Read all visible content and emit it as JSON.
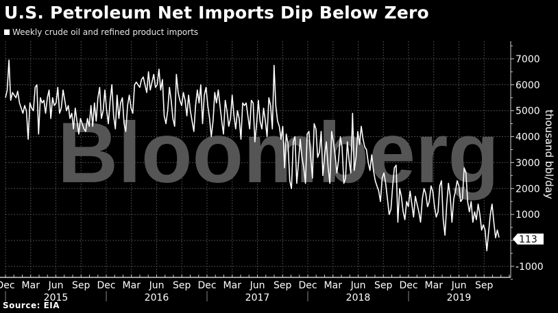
{
  "header": {
    "title": "U.S. Petroleum Net Imports Dip Below Zero",
    "legend_label": "Weekly crude oil and refined product imports"
  },
  "footer": {
    "source": "Source: EIA"
  },
  "watermark": "Bloomberg",
  "last_value_label": "113",
  "colors": {
    "background": "#000000",
    "line": "#ffffff",
    "grid": "#3a3a3a",
    "watermark": "#555555"
  },
  "chart_data": {
    "type": "line",
    "title": "U.S. Petroleum Net Imports Dip Below Zero",
    "legend": [
      "Weekly crude oil and refined product imports"
    ],
    "xlabel": "",
    "ylabel": "thousand bbl/day",
    "ylim": [
      -1500,
      7500
    ],
    "yticks": [
      7000,
      6000,
      5000,
      4000,
      3000,
      2000,
      1000,
      -1000
    ],
    "ytick_labels": [
      "7000",
      "6000",
      "5000",
      "4000",
      "3000",
      "2000",
      "1000",
      "-1000"
    ],
    "x_month_ticks": [
      "Dec",
      "Mar",
      "Jun",
      "Sep",
      "Dec",
      "Mar",
      "Jun",
      "Sep",
      "Dec",
      "Mar",
      "Jun",
      "Sep",
      "Dec",
      "Mar",
      "Jun",
      "Sep",
      "Dec",
      "Mar",
      "Jun",
      "Sep"
    ],
    "x_year_labels": [
      "2015",
      "2016",
      "2017",
      "2018",
      "2019"
    ],
    "grid": true,
    "legend_position": "top-left",
    "last_value": 113,
    "x_start": "2014-12",
    "x_end": "2019-11",
    "frequency": "weekly",
    "series": [
      {
        "name": "Weekly crude oil and refined product imports",
        "values": [
          5500,
          5800,
          6950,
          5400,
          5700,
          5600,
          5500,
          5750,
          5300,
          5100,
          4900,
          5200,
          5000,
          3900,
          5300,
          5100,
          5000,
          5900,
          6000,
          4100,
          5500,
          5300,
          5400,
          4900,
          5500,
          5800,
          4700,
          5500,
          5200,
          5300,
          5900,
          4900,
          5100,
          5800,
          5400,
          5000,
          5200,
          4700,
          4900,
          4300,
          5100,
          4600,
          4100,
          4700,
          4500,
          4300,
          4200,
          4700,
          4400,
          5200,
          4400,
          5300,
          4600,
          5500,
          5900,
          4700,
          5000,
          5800,
          5000,
          4500,
          5400,
          6000,
          4800,
          4300,
          5600,
          4700,
          5300,
          5500,
          4500,
          4200,
          5200,
          5600,
          5100,
          4900,
          6000,
          6100,
          6000,
          5900,
          6200,
          6300,
          6000,
          5700,
          6500,
          5800,
          6100,
          6400,
          5900,
          6000,
          6600,
          5800,
          6200,
          4800,
          4500,
          5000,
          5900,
          5400,
          4700,
          4400,
          6400,
          5700,
          5400,
          5200,
          5700,
          5400,
          4800,
          5600,
          5000,
          4600,
          4200,
          5200,
          5800,
          5300,
          6000,
          4500,
          5600,
          5900,
          5200,
          4700,
          4000,
          4600,
          5700,
          5300,
          5800,
          5200,
          4600,
          4100,
          5400,
          5000,
          4400,
          4700,
          5600,
          4800,
          4300,
          5000,
          4700,
          3900,
          5300,
          5200,
          5300,
          4800,
          4300,
          5400,
          5300,
          3800,
          4500,
          5400,
          4600,
          4300,
          5100,
          4600,
          4000,
          5500,
          5200,
          4300,
          6750,
          5200,
          4600,
          4400,
          3900,
          4400,
          2800,
          4100,
          3700,
          2300,
          2000,
          3800,
          4000,
          2200,
          3000,
          3900,
          3200,
          2800,
          2200,
          4100,
          4200,
          3200,
          2400,
          4500,
          4300,
          3200,
          3400,
          4200,
          2500,
          3300,
          3800,
          2800,
          2200,
          4200,
          3800,
          3300,
          2600,
          3100,
          4000,
          3600,
          2200,
          2400,
          3800,
          3100,
          2600,
          4900,
          2700,
          3200,
          4200,
          3700,
          4400,
          3900,
          3600,
          3500,
          3000,
          2700,
          3300,
          2700,
          2300,
          2100,
          1900,
          1500,
          2400,
          2600,
          2200,
          1600,
          1000,
          1200,
          2100,
          2800,
          2900,
          700,
          2000,
          1700,
          1100,
          800,
          1500,
          1300,
          1900,
          1400,
          900,
          1700,
          1400,
          1100,
          700,
          1600,
          2000,
          1800,
          1300,
          1500,
          2100,
          1900,
          1300,
          900,
          1100,
          2100,
          2300,
          800,
          200,
          1400,
          2200,
          1700,
          700,
          1600,
          1900,
          2300,
          2100,
          1500,
          1600,
          2800,
          2600,
          1500,
          1100,
          1500,
          700,
          1100,
          800,
          1400,
          1000,
          400,
          600,
          400,
          -400,
          300,
          1000,
          1400,
          700,
          100,
          400,
          113
        ]
      }
    ]
  }
}
